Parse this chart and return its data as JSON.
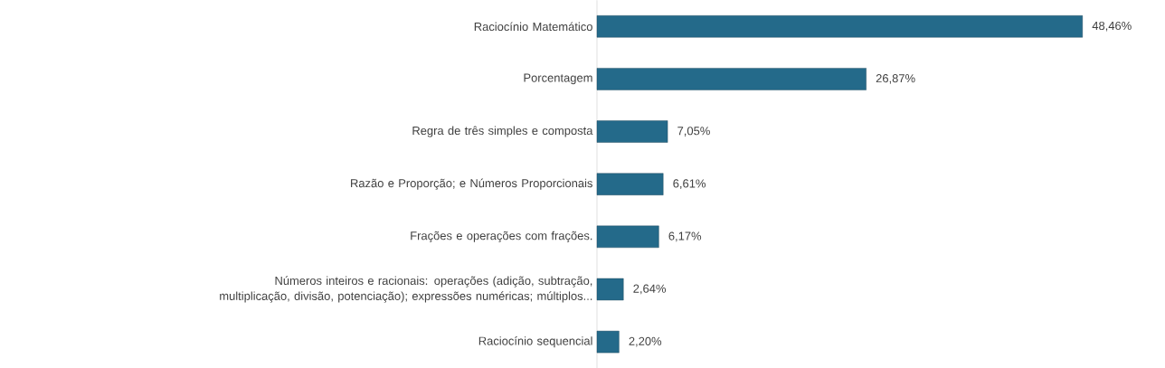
{
  "chart_data": {
    "type": "bar",
    "orientation": "horizontal",
    "categories": [
      "Raciocínio Matemático",
      "Porcentagem",
      "Regra de três simples e composta",
      "Razão e Proporção; e Números Proporcionais",
      "Frações e operações com frações.",
      "Números inteiros e racionais: operações (adição, subtração, multiplicação, divisão, potenciação); expressões numéricas; múltiplos...",
      "Raciocínio sequencial"
    ],
    "values": [
      48.46,
      26.87,
      7.05,
      6.61,
      6.17,
      2.64,
      2.2
    ],
    "value_labels": [
      "48,46%",
      "26,87%",
      "7,05%",
      "6,61%",
      "6,17%",
      "2,64%",
      "2,20%"
    ],
    "color": "#246a8a"
  }
}
